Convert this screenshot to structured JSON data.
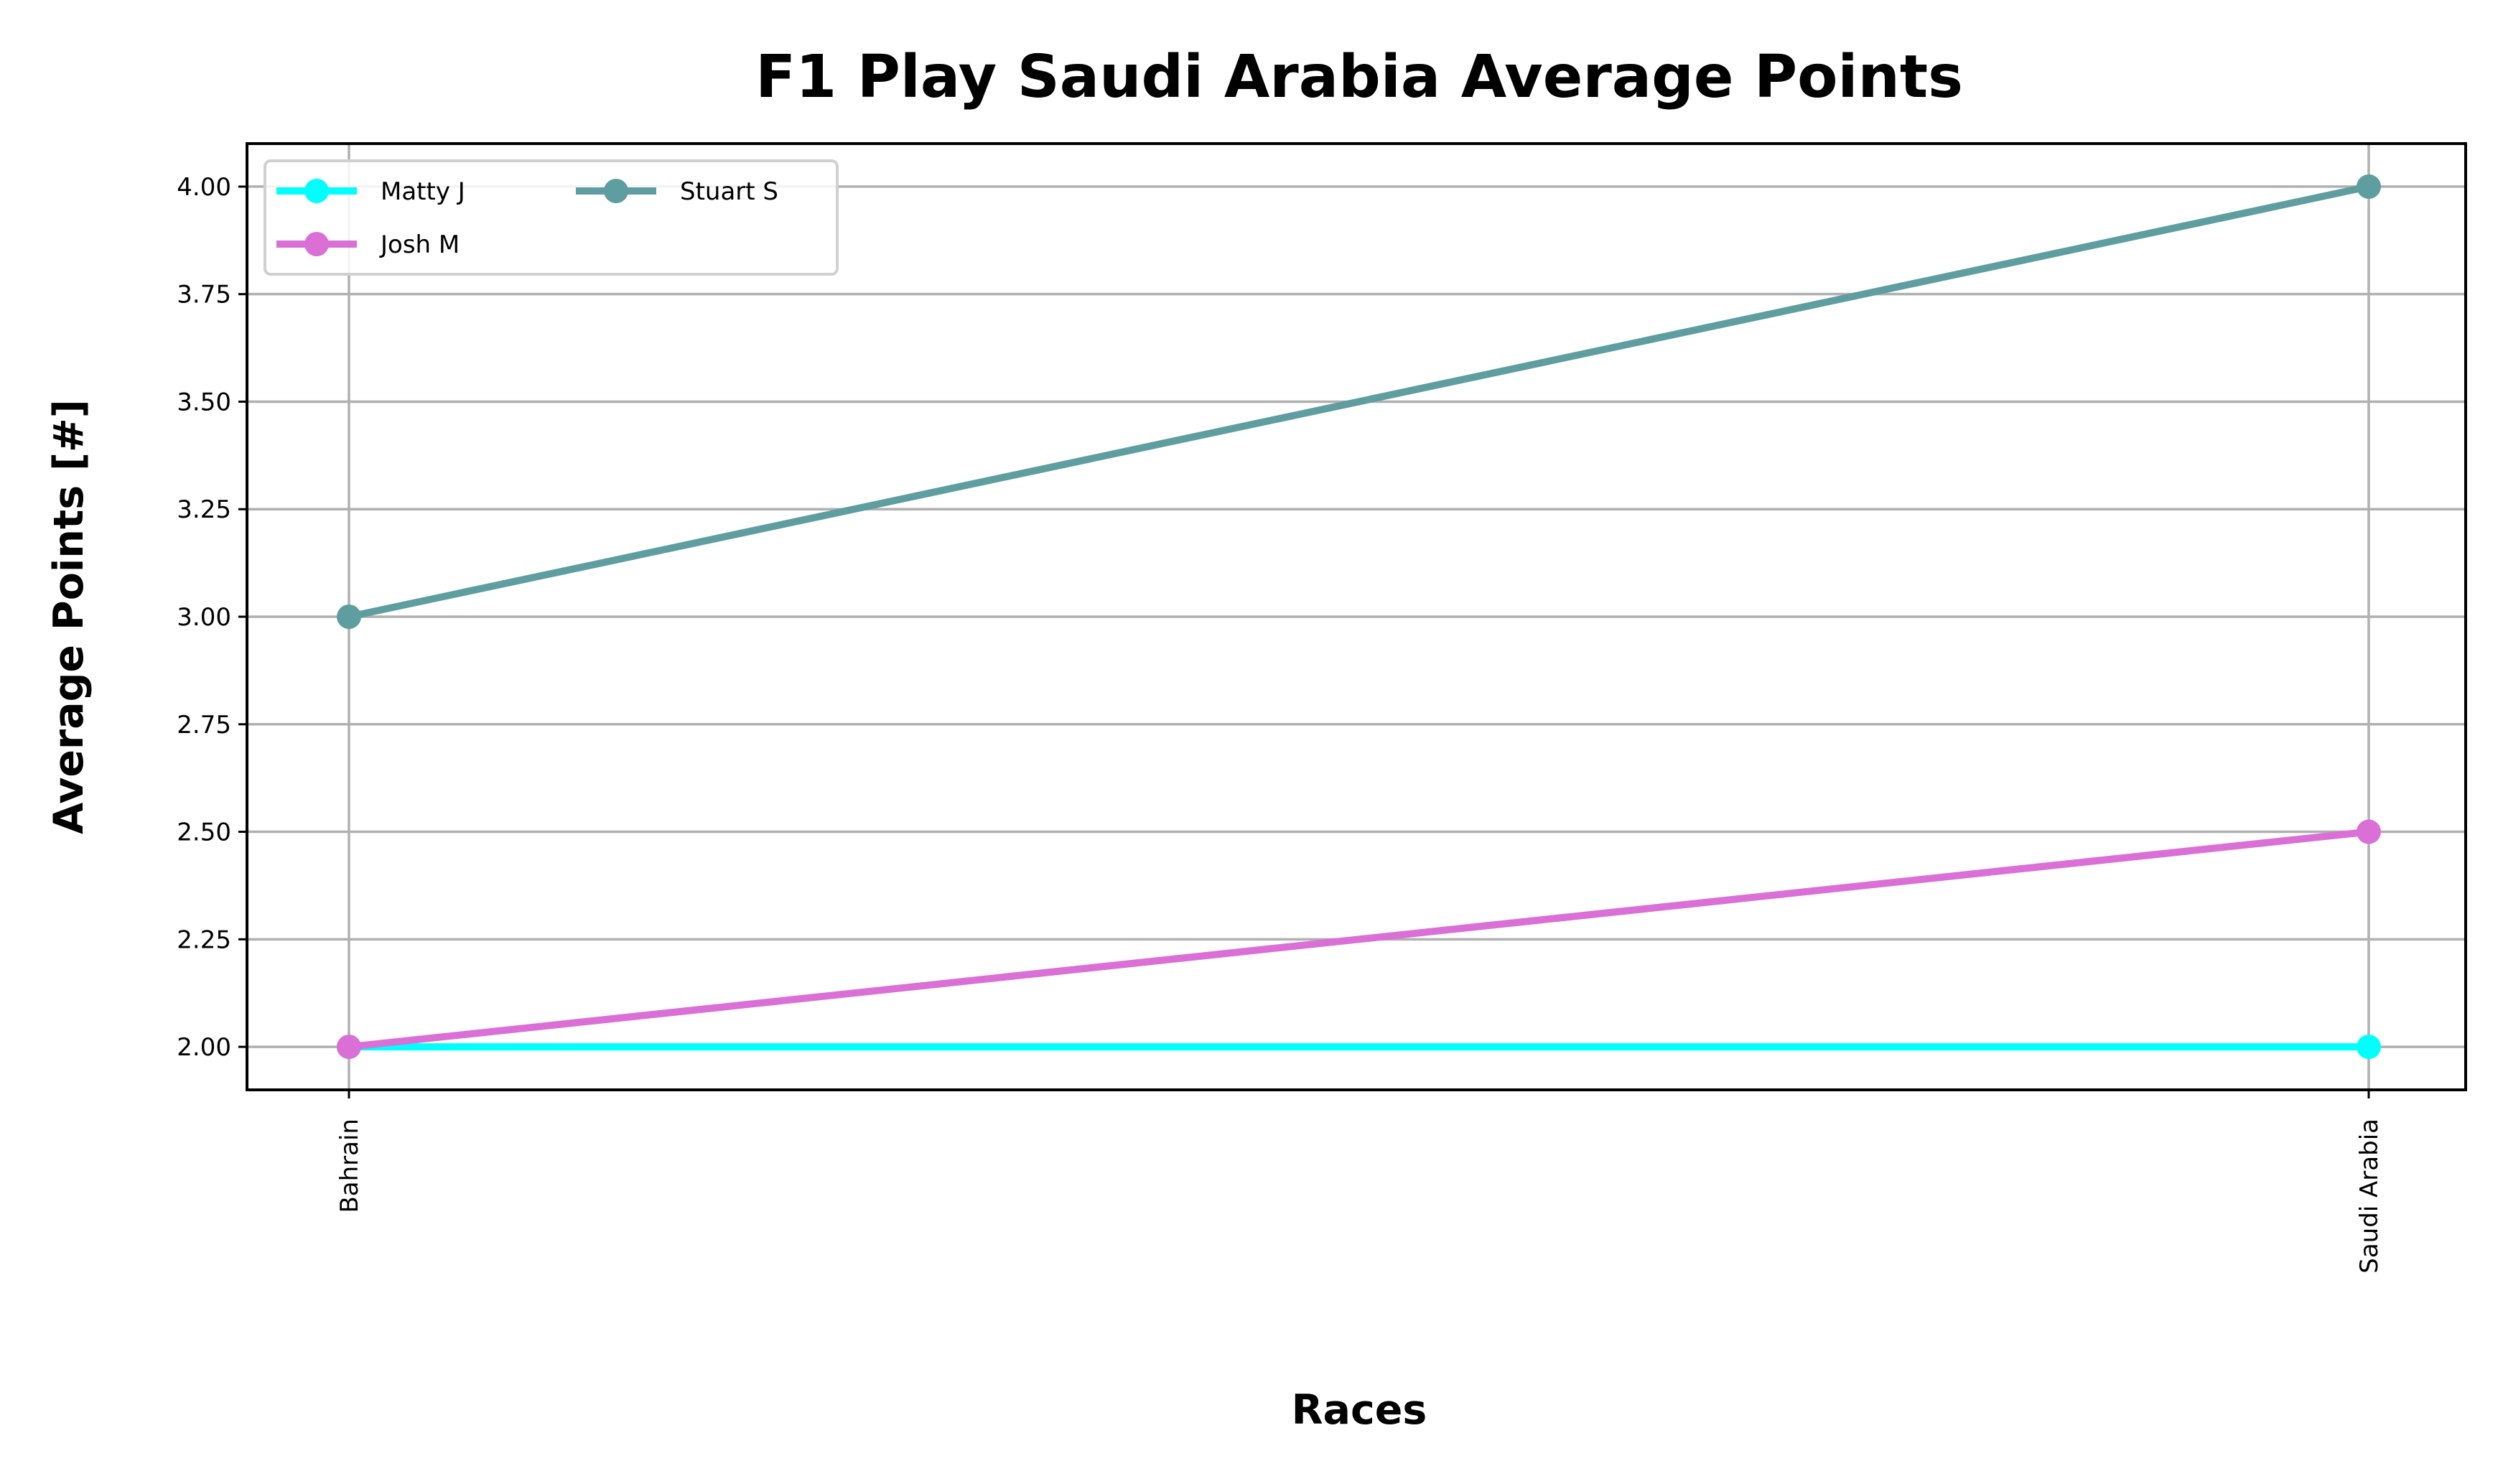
{
  "chart_data": {
    "type": "line",
    "title": "F1 Play Saudi Arabia Average Points",
    "xlabel": "Races",
    "ylabel": "Average Points [#]",
    "categories": [
      "Bahrain",
      "Saudi Arabia"
    ],
    "ylim": [
      1.9,
      4.1
    ],
    "yticks": [
      2.0,
      2.25,
      2.5,
      2.75,
      3.0,
      3.25,
      3.5,
      3.75,
      4.0
    ],
    "ytick_labels": [
      "2.00",
      "2.25",
      "2.50",
      "2.75",
      "3.00",
      "3.25",
      "3.50",
      "3.75",
      "4.00"
    ],
    "grid": true,
    "legend_position": "top-left",
    "legend_columns": 2,
    "series": [
      {
        "name": "Matty J",
        "color": "#00ffff",
        "values": [
          2.0,
          2.0
        ]
      },
      {
        "name": "Josh M",
        "color": "#da70d6",
        "values": [
          2.0,
          2.5
        ]
      },
      {
        "name": "Stuart S",
        "color": "#5f9ea0",
        "values": [
          3.0,
          4.0
        ]
      }
    ]
  }
}
